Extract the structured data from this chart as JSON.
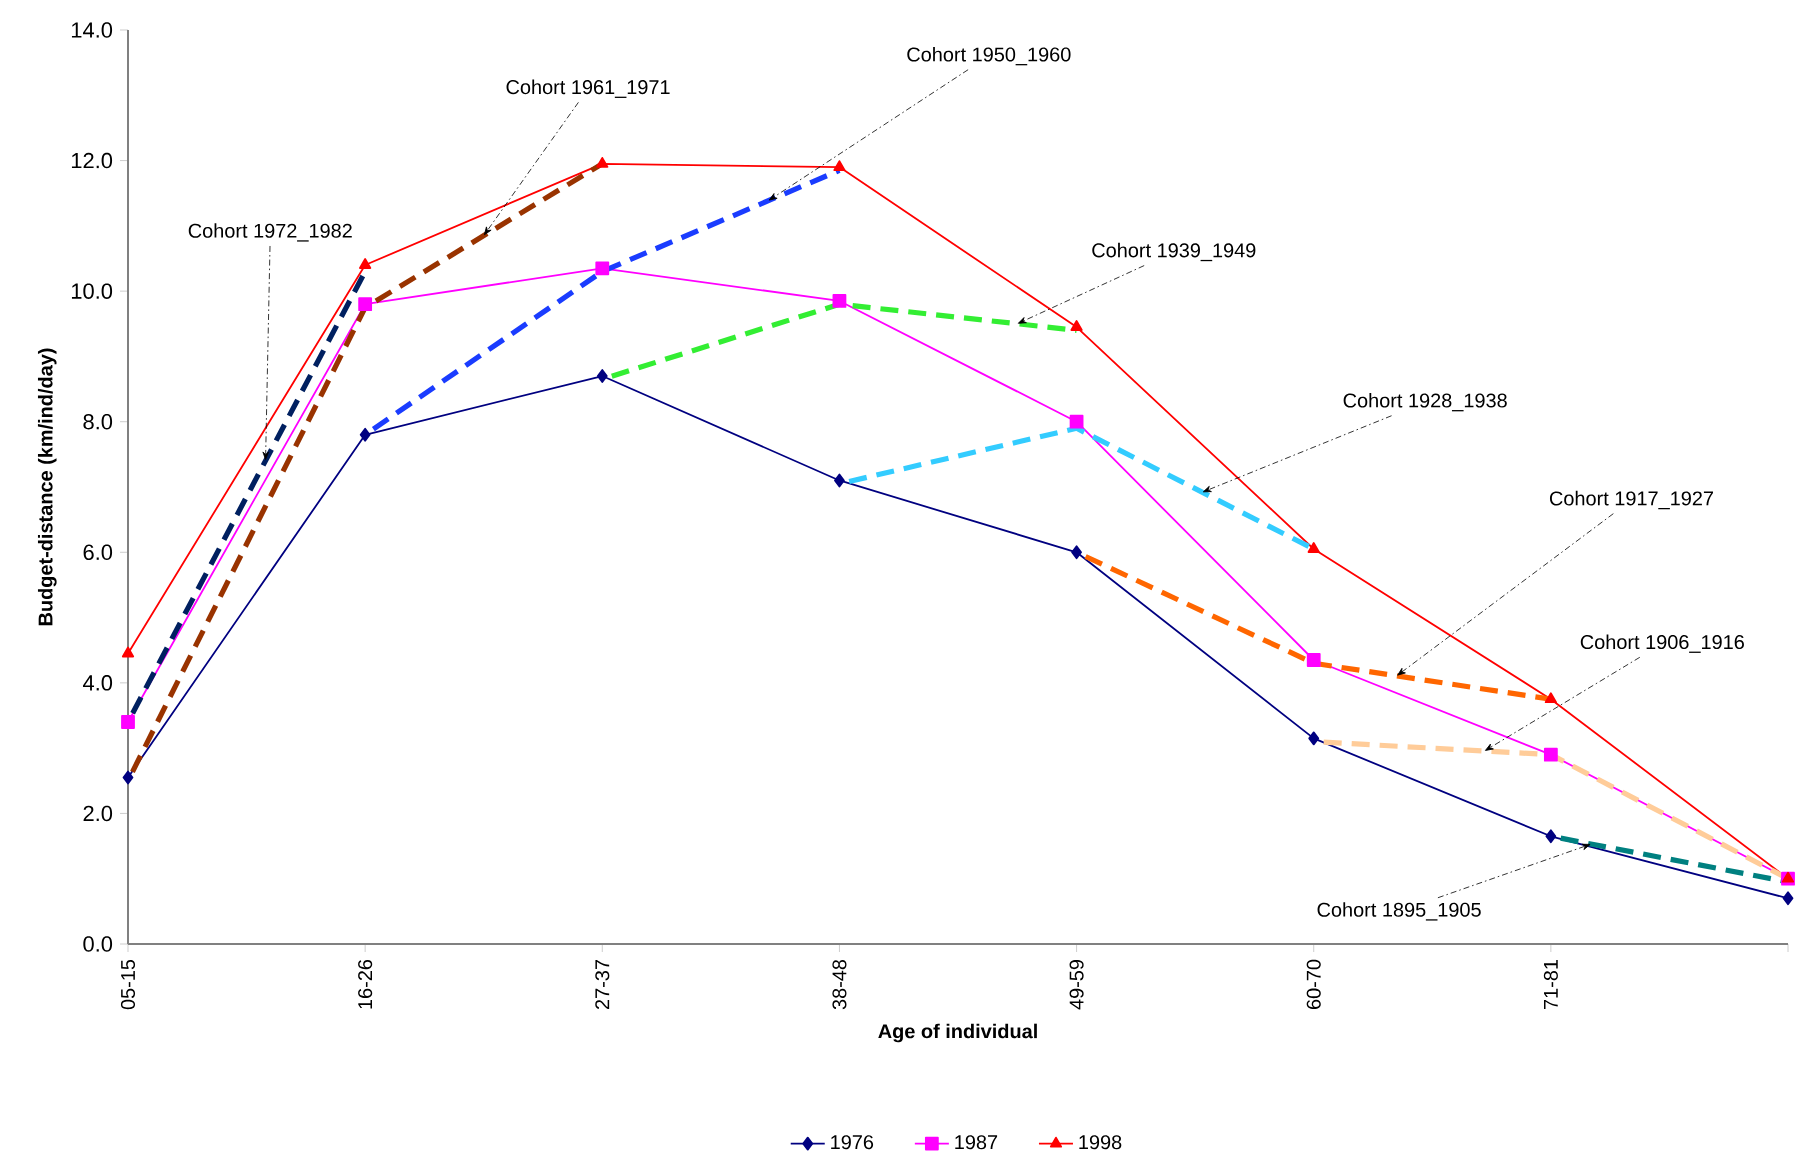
{
  "chart_data": {
    "type": "line",
    "xlabel": "Age of individual",
    "ylabel": "Budget-distance  (km/ind/day)",
    "categories": [
      "05-15",
      "16-26",
      "27-37",
      "38-48",
      "49-59",
      "60-70",
      "71-81",
      null
    ],
    "ylim": [
      0,
      14
    ],
    "yticks": [
      {
        "value": 0,
        "label": "0.0"
      },
      {
        "value": 2,
        "label": "2.0"
      },
      {
        "value": 4,
        "label": "4.0"
      },
      {
        "value": 6,
        "label": "6.0"
      },
      {
        "value": 8,
        "label": "8.0"
      },
      {
        "value": 10,
        "label": "10.0"
      },
      {
        "value": 12,
        "label": "12.0"
      },
      {
        "value": 14,
        "label": "14.0"
      }
    ],
    "grid": false,
    "legend": "bottom",
    "series": [
      {
        "name": "1976",
        "color": "#000080",
        "marker": "diamond",
        "line_style": "solid",
        "values": [
          2.55,
          7.8,
          8.7,
          7.1,
          6.0,
          3.15,
          1.65,
          0.7
        ]
      },
      {
        "name": "1987",
        "color": "#ff00ff",
        "marker": "square",
        "line_style": "solid",
        "values": [
          3.4,
          9.8,
          10.35,
          9.85,
          8.0,
          4.35,
          2.9,
          1.0
        ]
      },
      {
        "name": "1998",
        "color": "#ff0000",
        "marker": "triangle",
        "line_style": "solid",
        "values": [
          4.45,
          10.4,
          11.95,
          11.9,
          9.45,
          6.05,
          3.75,
          1.0
        ]
      },
      {
        "name": "Cohort 1972_1982",
        "color": "#002060",
        "marker": "none",
        "line_style": "dashed",
        "values": [
          3.4,
          10.3,
          null,
          null,
          null,
          null,
          null,
          null
        ]
      },
      {
        "name": "Cohort 1961_1971",
        "color": "#993300",
        "marker": "none",
        "line_style": "dashed",
        "values": [
          2.5,
          9.75,
          11.95,
          null,
          null,
          null,
          null,
          null
        ]
      },
      {
        "name": "Cohort 1950_1960",
        "color": "#1a3cff",
        "marker": "none",
        "line_style": "dashed",
        "values": [
          null,
          7.8,
          10.3,
          11.85,
          null,
          null,
          null,
          null
        ]
      },
      {
        "name": "Cohort 1939_1949",
        "color": "#33ee33",
        "marker": "none",
        "line_style": "dashed",
        "values": [
          null,
          null,
          8.65,
          9.8,
          9.4,
          null,
          null,
          null
        ]
      },
      {
        "name": "Cohort 1928_1938",
        "color": "#33ccff",
        "marker": "none",
        "line_style": "dashed",
        "values": [
          null,
          null,
          null,
          7.05,
          7.9,
          6.05,
          null,
          null
        ]
      },
      {
        "name": "Cohort 1917_1927",
        "color": "#ff6600",
        "marker": "none",
        "line_style": "dashed",
        "values": [
          null,
          null,
          null,
          null,
          6.0,
          4.3,
          3.75,
          null
        ]
      },
      {
        "name": "Cohort 1906_1916",
        "color": "#ffcc99",
        "marker": "none",
        "line_style": "dashed",
        "values": [
          null,
          null,
          null,
          null,
          null,
          3.1,
          2.9,
          1.0
        ]
      },
      {
        "name": "Cohort 1895_1905",
        "color": "#008080",
        "marker": "none",
        "line_style": "dashed",
        "values": [
          null,
          null,
          null,
          null,
          null,
          null,
          1.65,
          0.95
        ]
      }
    ]
  }
}
